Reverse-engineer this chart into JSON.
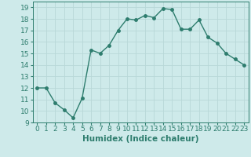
{
  "x": [
    0,
    1,
    2,
    3,
    4,
    5,
    6,
    7,
    8,
    9,
    10,
    11,
    12,
    13,
    14,
    15,
    16,
    17,
    18,
    19,
    20,
    21,
    22,
    23
  ],
  "y": [
    12,
    12,
    10.7,
    10.1,
    9.4,
    11.1,
    15.3,
    15.0,
    15.7,
    17.0,
    18.0,
    17.9,
    18.3,
    18.1,
    18.9,
    18.8,
    17.1,
    17.1,
    17.9,
    16.4,
    15.9,
    15.0,
    14.5,
    14.0
  ],
  "line_color": "#2e7d6e",
  "marker": "o",
  "markersize": 2.5,
  "linewidth": 1.0,
  "bg_color": "#ceeaea",
  "grid_color": "#b8d8d8",
  "xlabel": "Humidex (Indice chaleur)",
  "xlim": [
    -0.5,
    23.5
  ],
  "ylim": [
    9,
    19.5
  ],
  "yticks": [
    9,
    10,
    11,
    12,
    13,
    14,
    15,
    16,
    17,
    18,
    19
  ],
  "xticks": [
    0,
    1,
    2,
    3,
    4,
    5,
    6,
    7,
    8,
    9,
    10,
    11,
    12,
    13,
    14,
    15,
    16,
    17,
    18,
    19,
    20,
    21,
    22,
    23
  ],
  "tick_color": "#2e7d6e",
  "tick_fontsize": 6.5,
  "xlabel_fontsize": 7.5
}
